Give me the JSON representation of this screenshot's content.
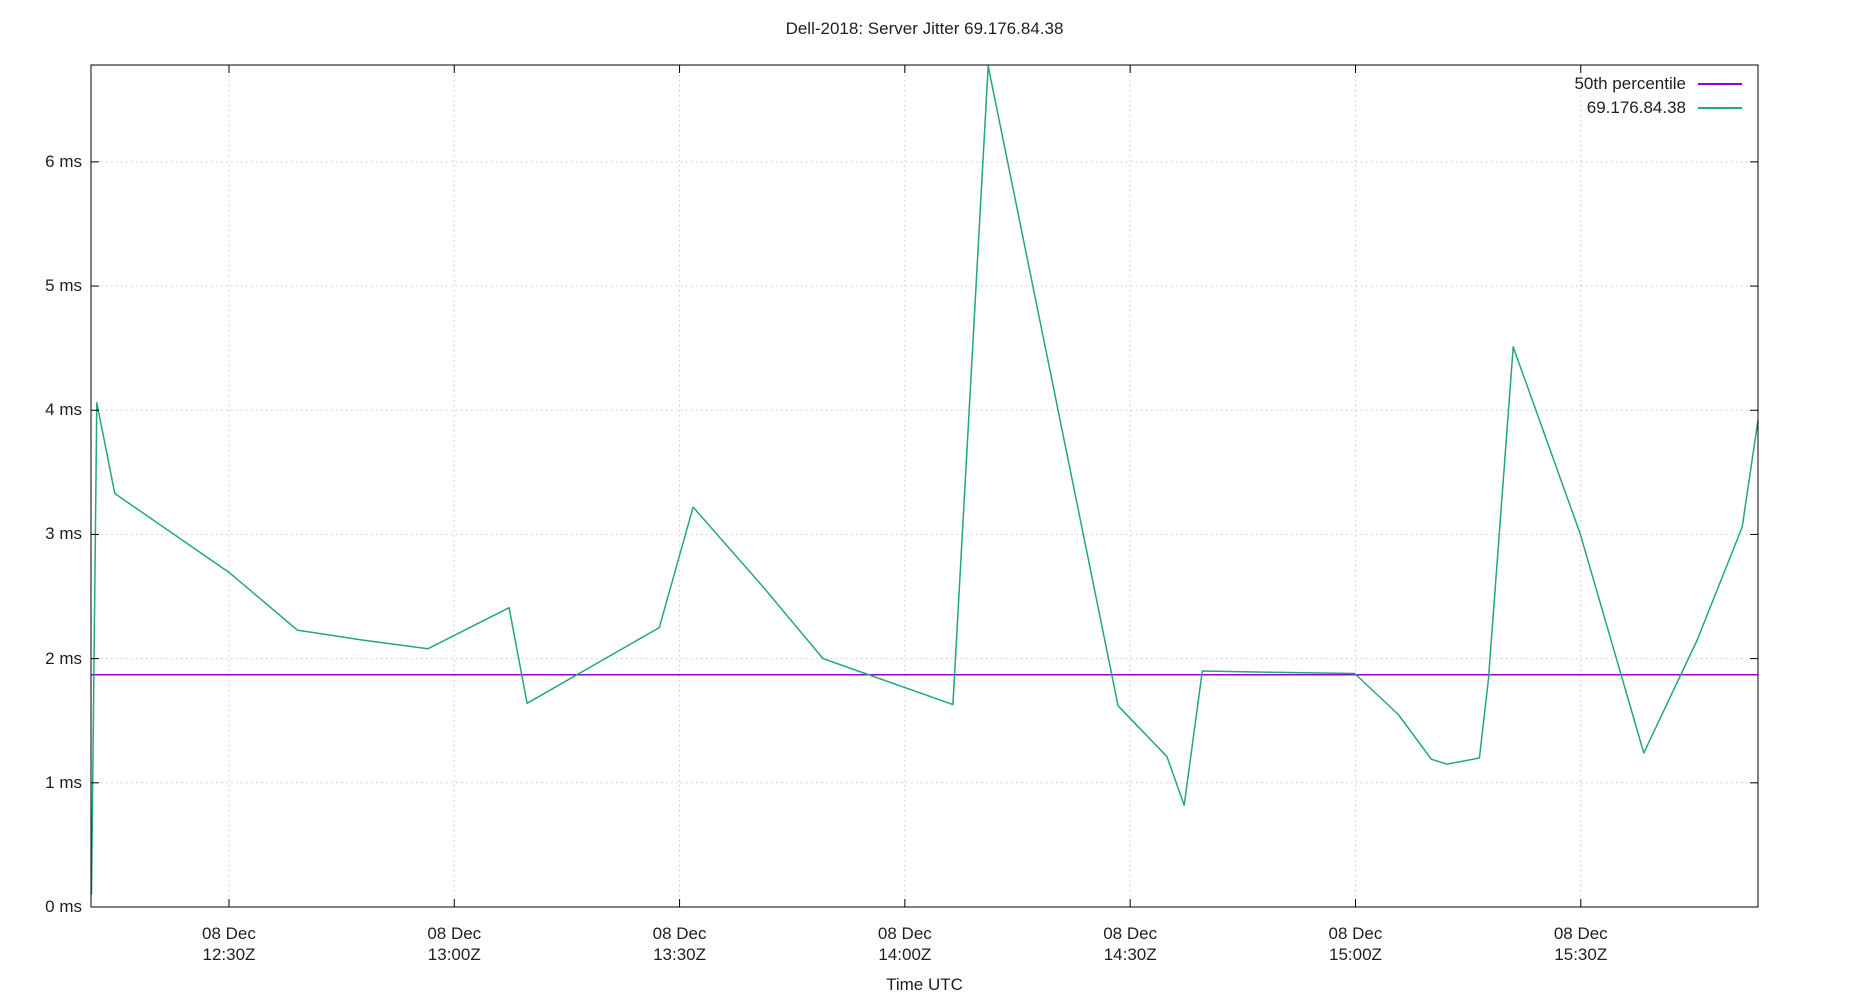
{
  "header": {
    "title": "Dell-2018: Server Jitter 69.176.84.38"
  },
  "axes": {
    "x_label": "Time UTC"
  },
  "legend": {
    "items": [
      {
        "label": "50th percentile",
        "color": "#9400d3"
      },
      {
        "label": "69.176.84.38",
        "color": "#23a77d"
      }
    ]
  },
  "colors": {
    "background": "#ffffff",
    "border": "#000000",
    "grid": "#c9c9c9",
    "text": "#1f1f1f",
    "percentile_line": "#9400d3",
    "series_line": "#23a77d"
  },
  "chart_data": {
    "type": "line",
    "title": "Dell-2018: Server Jitter 69.176.84.38",
    "xlabel": "Time UTC",
    "ylabel": "",
    "x_unit": "minutes_after_1200Z_08_Dec",
    "xlim": [
      11.63,
      233.6
    ],
    "ylim": [
      0,
      6.78
    ],
    "grid": true,
    "legend_position": "top-right-inside",
    "y_ticks": [
      {
        "value": 0,
        "label": "0 ms"
      },
      {
        "value": 1,
        "label": "1 ms"
      },
      {
        "value": 2,
        "label": "2 ms"
      },
      {
        "value": 3,
        "label": "3 ms"
      },
      {
        "value": 4,
        "label": "4 ms"
      },
      {
        "value": 5,
        "label": "5 ms"
      },
      {
        "value": 6,
        "label": "6 ms"
      }
    ],
    "x_ticks": [
      {
        "value": 30,
        "line1": "08 Dec",
        "line2": "12:30Z"
      },
      {
        "value": 60,
        "line1": "08 Dec",
        "line2": "13:00Z"
      },
      {
        "value": 90,
        "line1": "08 Dec",
        "line2": "13:30Z"
      },
      {
        "value": 120,
        "line1": "08 Dec",
        "line2": "14:00Z"
      },
      {
        "value": 150,
        "line1": "08 Dec",
        "line2": "14:30Z"
      },
      {
        "value": 180,
        "line1": "08 Dec",
        "line2": "15:00Z"
      },
      {
        "value": 210,
        "line1": "08 Dec",
        "line2": "15:30Z"
      }
    ],
    "series": [
      {
        "name": "50th percentile",
        "color": "#9400d3",
        "points": [
          [
            11.63,
            1.87
          ],
          [
            233.6,
            1.87
          ]
        ]
      },
      {
        "name": "69.176.84.38",
        "color": "#23a77d",
        "points": [
          [
            11.7,
            0.1
          ],
          [
            12.4,
            4.06
          ],
          [
            14.8,
            3.33
          ],
          [
            30.1,
            2.69
          ],
          [
            39.1,
            2.23
          ],
          [
            47.7,
            2.15
          ],
          [
            56.5,
            2.08
          ],
          [
            67.3,
            2.41
          ],
          [
            69.7,
            1.64
          ],
          [
            87.3,
            2.25
          ],
          [
            91.8,
            3.22
          ],
          [
            101.1,
            2.58
          ],
          [
            109.1,
            2.0
          ],
          [
            114.7,
            1.88
          ],
          [
            126.4,
            1.63
          ],
          [
            131.1,
            6.77
          ],
          [
            148.4,
            1.62
          ],
          [
            154.9,
            1.21
          ],
          [
            157.2,
            0.82
          ],
          [
            159.6,
            1.9
          ],
          [
            168.6,
            1.89
          ],
          [
            179.9,
            1.88
          ],
          [
            185.7,
            1.55
          ],
          [
            190.1,
            1.19
          ],
          [
            192.2,
            1.15
          ],
          [
            196.5,
            1.2
          ],
          [
            197.7,
            1.83
          ],
          [
            201.0,
            4.51
          ],
          [
            209.9,
            3.01
          ],
          [
            218.4,
            1.24
          ],
          [
            225.5,
            2.15
          ],
          [
            231.5,
            3.06
          ],
          [
            233.6,
            3.92
          ]
        ]
      }
    ]
  }
}
